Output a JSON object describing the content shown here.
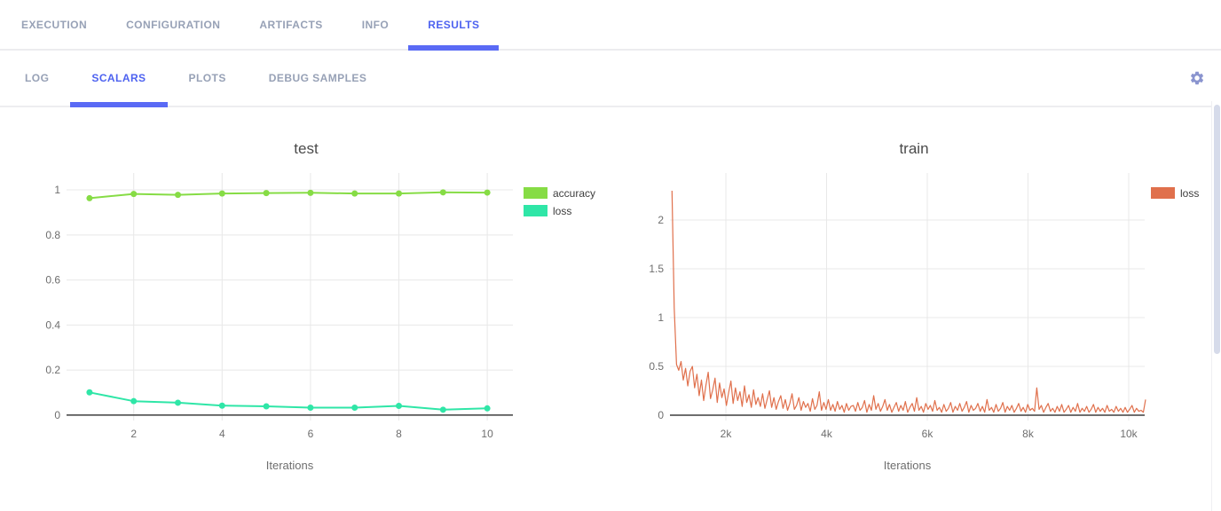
{
  "header": {
    "tabs": [
      {
        "label": "EXECUTION",
        "active": false
      },
      {
        "label": "CONFIGURATION",
        "active": false
      },
      {
        "label": "ARTIFACTS",
        "active": false
      },
      {
        "label": "INFO",
        "active": false
      },
      {
        "label": "RESULTS",
        "active": true
      }
    ],
    "subtabs": [
      {
        "label": "LOG",
        "active": false
      },
      {
        "label": "SCALARS",
        "active": true
      },
      {
        "label": "PLOTS",
        "active": false
      },
      {
        "label": "DEBUG SAMPLES",
        "active": false
      }
    ],
    "icons": {
      "settings": "gear-icon"
    }
  },
  "colors": {
    "accent_text": "#4d62f0",
    "accent_underline": "#5a6af5",
    "tab_inactive": "#97a1b6",
    "gear": "#8a94cf",
    "grid": "#e8e8e8",
    "zero_line": "#3f3f3f",
    "tick_label": "#6e6e6e",
    "chart_title": "#4b4b4b",
    "legend_label": "#3d3d3d",
    "scroll_thumb": "#d6dbea"
  },
  "chart_data": [
    {
      "type": "line",
      "title": "test",
      "xlabel": "Iterations",
      "grid": true,
      "markers": true,
      "legend_position": "right",
      "x": [
        1,
        2,
        3,
        4,
        5,
        6,
        7,
        8,
        9,
        10
      ],
      "series": [
        {
          "name": "accuracy",
          "color": "#86dc45",
          "values": [
            0.963,
            0.982,
            0.978,
            0.984,
            0.986,
            0.987,
            0.984,
            0.984,
            0.989,
            0.988
          ]
        },
        {
          "name": "loss",
          "color": "#2fe6a7",
          "values": [
            0.101,
            0.062,
            0.055,
            0.042,
            0.039,
            0.033,
            0.033,
            0.041,
            0.024,
            0.03
          ]
        }
      ],
      "x_ticks": [
        2,
        4,
        6,
        8,
        10
      ],
      "x_tick_labels": [
        "2",
        "4",
        "6",
        "8",
        "10"
      ],
      "y_ticks": [
        0,
        0.2,
        0.4,
        0.6,
        0.8,
        1
      ],
      "xlim": [
        0.48,
        10.58
      ],
      "ylim": [
        -0.024,
        1.075
      ]
    },
    {
      "type": "line",
      "title": "train",
      "xlabel": "Iterations",
      "grid": true,
      "markers": false,
      "legend_position": "right",
      "x_start": 930,
      "x_step": 45,
      "series": [
        {
          "name": "loss",
          "color": "#e0704c",
          "values": [
            2.3,
            1.1,
            0.52,
            0.46,
            0.55,
            0.36,
            0.48,
            0.3,
            0.45,
            0.5,
            0.28,
            0.42,
            0.2,
            0.36,
            0.15,
            0.31,
            0.44,
            0.17,
            0.26,
            0.38,
            0.13,
            0.33,
            0.18,
            0.27,
            0.1,
            0.23,
            0.35,
            0.12,
            0.28,
            0.15,
            0.24,
            0.09,
            0.3,
            0.13,
            0.21,
            0.08,
            0.26,
            0.11,
            0.18,
            0.09,
            0.22,
            0.07,
            0.16,
            0.25,
            0.08,
            0.18,
            0.06,
            0.14,
            0.2,
            0.07,
            0.16,
            0.05,
            0.12,
            0.22,
            0.06,
            0.1,
            0.18,
            0.05,
            0.14,
            0.08,
            0.12,
            0.04,
            0.17,
            0.06,
            0.1,
            0.24,
            0.05,
            0.13,
            0.06,
            0.16,
            0.05,
            0.11,
            0.04,
            0.14,
            0.06,
            0.1,
            0.03,
            0.12,
            0.05,
            0.09,
            0.1,
            0.04,
            0.13,
            0.05,
            0.08,
            0.15,
            0.03,
            0.11,
            0.05,
            0.2,
            0.06,
            0.12,
            0.04,
            0.09,
            0.16,
            0.05,
            0.11,
            0.03,
            0.08,
            0.13,
            0.04,
            0.1,
            0.05,
            0.14,
            0.03,
            0.08,
            0.12,
            0.04,
            0.18,
            0.05,
            0.09,
            0.03,
            0.12,
            0.06,
            0.1,
            0.04,
            0.15,
            0.05,
            0.08,
            0.03,
            0.11,
            0.04,
            0.07,
            0.13,
            0.03,
            0.09,
            0.05,
            0.12,
            0.04,
            0.08,
            0.14,
            0.03,
            0.1,
            0.05,
            0.07,
            0.12,
            0.04,
            0.09,
            0.03,
            0.16,
            0.05,
            0.08,
            0.03,
            0.11,
            0.04,
            0.07,
            0.13,
            0.03,
            0.09,
            0.05,
            0.1,
            0.03,
            0.07,
            0.12,
            0.04,
            0.08,
            0.03,
            0.11,
            0.05,
            0.07,
            0.04,
            0.28,
            0.06,
            0.1,
            0.03,
            0.08,
            0.12,
            0.04,
            0.07,
            0.03,
            0.09,
            0.04,
            0.11,
            0.03,
            0.06,
            0.1,
            0.03,
            0.08,
            0.04,
            0.12,
            0.03,
            0.07,
            0.04,
            0.09,
            0.03,
            0.06,
            0.11,
            0.03,
            0.08,
            0.04,
            0.07,
            0.03,
            0.1,
            0.04,
            0.06,
            0.03,
            0.09,
            0.04,
            0.07,
            0.03,
            0.08,
            0.03,
            0.06,
            0.1,
            0.03,
            0.07,
            0.04,
            0.05,
            0.03,
            0.16
          ]
        }
      ],
      "x_ticks": [
        2000,
        4000,
        6000,
        8000,
        10000
      ],
      "x_tick_labels": [
        "2k",
        "4k",
        "6k",
        "8k",
        "10k"
      ],
      "y_ticks": [
        0,
        0.5,
        1,
        1.5,
        2
      ],
      "xlim": [
        890,
        10317
      ],
      "ylim": [
        -0.055,
        2.482
      ]
    }
  ]
}
